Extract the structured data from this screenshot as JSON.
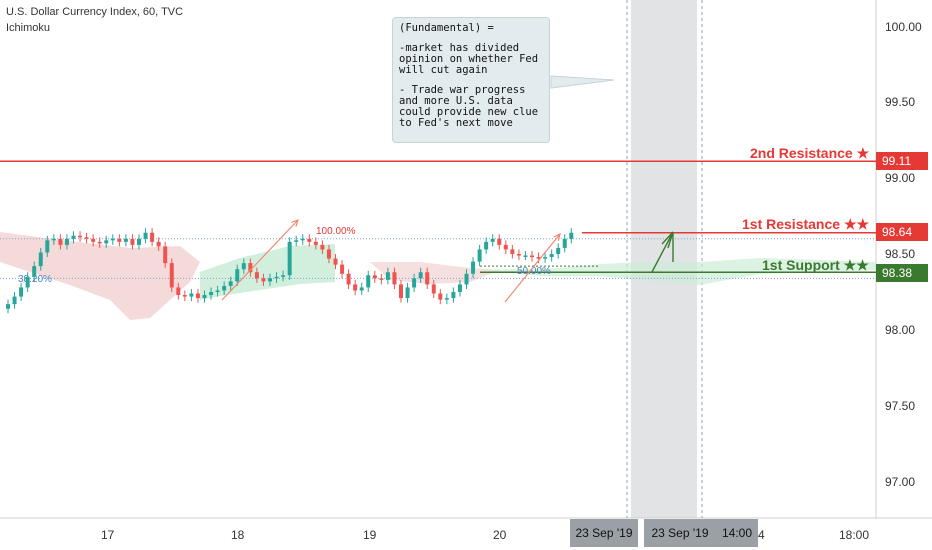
{
  "header": {
    "title": "U.S. Dollar Currency Index, 60, TVC",
    "indicator": "Ichimoku"
  },
  "callout": {
    "heading": "(Fundamental) =",
    "point1": "-market has divided opinion on whether Fed will cut again",
    "point2": "- Trade war progress and more U.S. data could provide new clue to Fed's next move"
  },
  "levels": {
    "resistance2": {
      "label": "2nd Resistance ★",
      "value": "99.11",
      "color": "#e53935"
    },
    "resistance1": {
      "label": "1st Resistance ★★",
      "value": "98.64",
      "color": "#e53935"
    },
    "support1": {
      "label": "1st Support ★★",
      "value": "98.38",
      "color": "#3a7a2e"
    }
  },
  "fib": {
    "level100": "100.00%",
    "level50": "50.00%",
    "level38": "38.20%"
  },
  "colors": {
    "up": "#26a69a",
    "down": "#ef5350",
    "cloud_green": "#c9ecd6",
    "cloud_red": "#f3d4d4",
    "shade": "#c9ccce"
  },
  "y_axis_ticks": [
    "100.00",
    "99.50",
    "99.00",
    "98.50",
    "98.00",
    "97.50",
    "97.00"
  ],
  "x_axis": {
    "ticks": [
      "17",
      "18",
      "19",
      "20",
      "4",
      "18:00"
    ],
    "highlight1": "23 Sep '19",
    "highlight2": "23 Sep '19",
    "highlight3": "14:00"
  },
  "chart_data": {
    "type": "candlestick",
    "title": "U.S. Dollar Currency Index, 60, TVC",
    "ylim": [
      96.75,
      100.15
    ],
    "yticks": [
      100.0,
      99.5,
      99.0,
      98.5,
      98.0,
      97.5,
      97.0
    ],
    "xcategories": [
      "17",
      "18",
      "19",
      "20"
    ],
    "horizontal_levels": [
      {
        "name": "2nd Resistance",
        "value": 99.11
      },
      {
        "name": "1st Resistance",
        "value": 98.64
      },
      {
        "name": "1st Support",
        "value": 98.38
      }
    ],
    "ohlc_close_approx": [
      98.17,
      98.22,
      98.28,
      98.35,
      98.42,
      98.51,
      98.59,
      98.6,
      98.56,
      98.6,
      98.62,
      98.61,
      98.6,
      98.58,
      98.57,
      98.59,
      98.6,
      98.58,
      98.6,
      98.56,
      98.6,
      98.64,
      98.58,
      98.55,
      98.44,
      98.28,
      98.23,
      98.22,
      98.24,
      98.21,
      98.23,
      98.25,
      98.26,
      98.29,
      98.32,
      98.4,
      98.44,
      98.38,
      98.34,
      98.32,
      98.34,
      98.35,
      98.36,
      98.58,
      98.59,
      98.6,
      98.58,
      98.56,
      98.53,
      98.47,
      98.43,
      98.37,
      98.3,
      98.26,
      98.28,
      98.36,
      98.34,
      98.33,
      98.38,
      98.3,
      98.21,
      98.28,
      98.34,
      98.38,
      98.3,
      98.24,
      98.2,
      98.21,
      98.25,
      98.3,
      98.37,
      98.45,
      98.53,
      98.58,
      98.6,
      98.56,
      98.53,
      98.5,
      98.49,
      98.49,
      98.48,
      98.47,
      98.48,
      98.5,
      98.54,
      98.6,
      98.64
    ]
  }
}
